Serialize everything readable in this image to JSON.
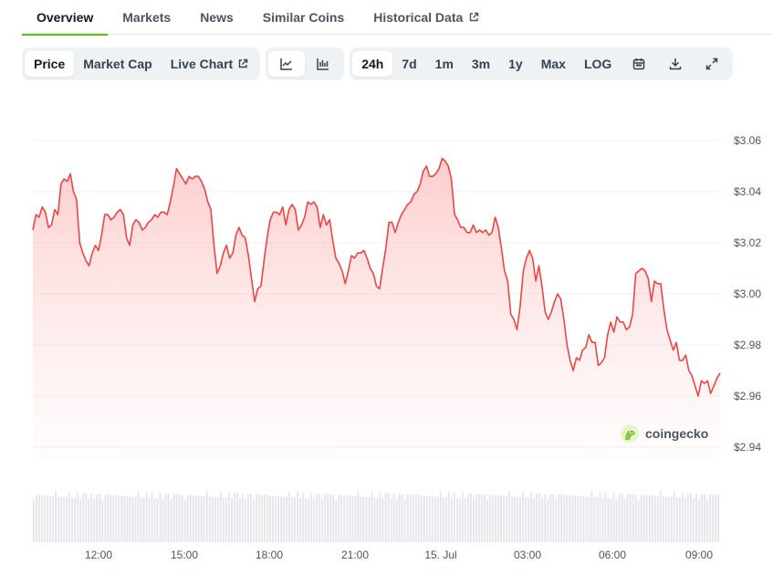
{
  "tabs": [
    {
      "label": "Overview",
      "active": true
    },
    {
      "label": "Markets"
    },
    {
      "label": "News"
    },
    {
      "label": "Similar Coins"
    },
    {
      "label": "Historical Data",
      "external": true
    }
  ],
  "toolbar": {
    "data_type": [
      "Price",
      "Market Cap",
      "Live Chart"
    ],
    "chart_type_icons": [
      "line-chart-icon",
      "candlestick-chart-icon"
    ],
    "ranges": [
      "24h",
      "7d",
      "1m",
      "3m",
      "1y",
      "Max",
      "LOG"
    ],
    "active_range": "24h",
    "tool_icons": [
      "calendar-icon",
      "download-icon",
      "fullscreen-icon"
    ]
  },
  "colors": {
    "line": "#ef4444",
    "fill": "#fecaca",
    "grid": "#eef0f3",
    "volume": "#e5e7eb",
    "active_tab_underline": "#4bcc00"
  },
  "watermark": "coingecko",
  "chart_data": {
    "type": "area",
    "ylim": [
      2.935,
      3.065
    ],
    "y_ticks": [
      "$3.06",
      "$3.04",
      "$3.02",
      "$3.00",
      "$2.98",
      "$2.96",
      "$2.94"
    ],
    "x_ticks": [
      "12:00",
      "15:00",
      "18:00",
      "21:00",
      "15. Jul",
      "03:00",
      "06:00",
      "09:00"
    ],
    "x_start": "09:56",
    "x_end": "09:56",
    "grid": true,
    "series": [
      {
        "values": [
          3.025,
          3.031,
          3.03,
          3.034,
          3.032,
          3.026,
          3.027,
          3.033,
          3.031,
          3.043,
          3.045,
          3.044,
          3.047,
          3.04,
          3.037,
          3.02,
          3.016,
          3.013,
          3.011,
          3.016,
          3.019,
          3.017,
          3.023,
          3.031,
          3.031,
          3.029,
          3.03,
          3.032,
          3.033,
          3.031,
          3.022,
          3.019,
          3.027,
          3.029,
          3.028,
          3.025,
          3.026,
          3.028,
          3.029,
          3.031,
          3.03,
          3.032,
          3.032,
          3.031,
          3.036,
          3.042,
          3.049,
          3.047,
          3.045,
          3.043,
          3.046,
          3.045,
          3.046,
          3.046,
          3.044,
          3.041,
          3.036,
          3.033,
          3.019,
          3.008,
          3.011,
          3.016,
          3.019,
          3.014,
          3.016,
          3.023,
          3.026,
          3.023,
          3.022,
          3.015,
          3.006,
          2.997,
          3.002,
          3.003,
          3.013,
          3.022,
          3.029,
          3.032,
          3.032,
          3.031,
          3.034,
          3.027,
          3.033,
          3.035,
          3.033,
          3.025,
          3.027,
          3.03,
          3.036,
          3.035,
          3.036,
          3.034,
          3.026,
          3.031,
          3.027,
          3.029,
          3.021,
          3.014,
          3.012,
          3.009,
          3.004,
          3.009,
          3.015,
          3.014,
          3.016,
          3.016,
          3.017,
          3.014,
          3.01,
          3.008,
          3.003,
          3.002,
          3.01,
          3.018,
          3.028,
          3.028,
          3.024,
          3.028,
          3.031,
          3.033,
          3.035,
          3.036,
          3.039,
          3.04,
          3.043,
          3.048,
          3.05,
          3.046,
          3.046,
          3.047,
          3.049,
          3.053,
          3.052,
          3.05,
          3.045,
          3.031,
          3.029,
          3.026,
          3.026,
          3.024,
          3.024,
          3.027,
          3.024,
          3.025,
          3.024,
          3.025,
          3.023,
          3.024,
          3.03,
          3.026,
          3.018,
          3.009,
          3.005,
          2.992,
          2.99,
          2.986,
          2.995,
          3.009,
          3.014,
          3.017,
          3.014,
          3.005,
          3.011,
          3.003,
          2.993,
          2.99,
          2.993,
          2.997,
          3.0,
          2.998,
          2.99,
          2.98,
          2.974,
          2.97,
          2.975,
          2.974,
          2.978,
          2.979,
          2.984,
          2.981,
          2.981,
          2.972,
          2.973,
          2.975,
          2.984,
          2.989,
          2.985,
          2.991,
          2.989,
          2.989,
          2.986,
          2.987,
          2.992,
          3.008,
          3.009,
          3.01,
          3.009,
          3.006,
          2.997,
          3.005,
          3.004,
          3.004,
          2.994,
          2.986,
          2.982,
          2.978,
          2.981,
          2.974,
          2.974,
          2.976,
          2.97,
          2.968,
          2.964,
          2.96,
          2.966,
          2.965,
          2.966,
          2.961,
          2.964,
          2.967,
          2.969
        ]
      }
    ]
  }
}
